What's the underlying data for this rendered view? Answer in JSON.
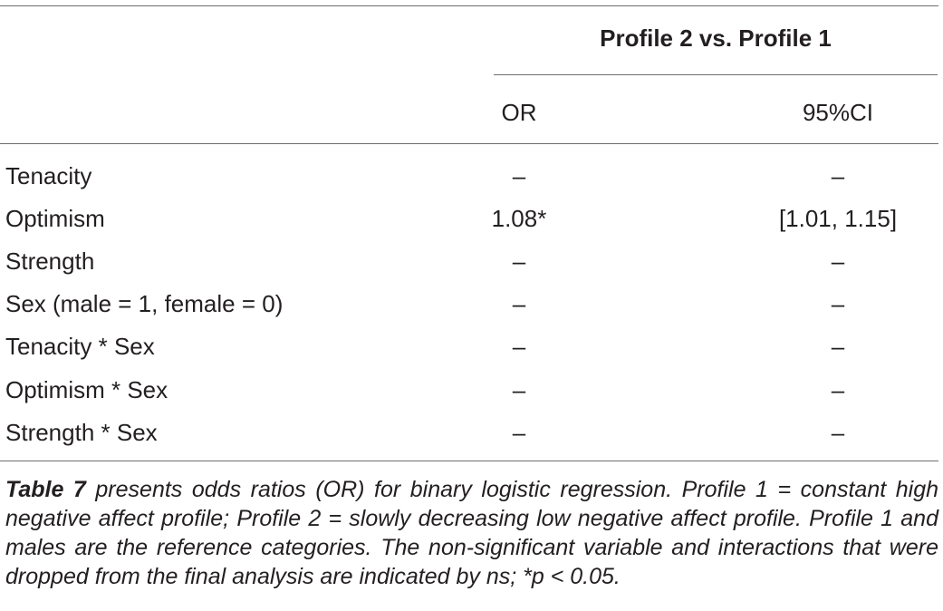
{
  "table": {
    "group_header": "Profile 2 vs. Profile 1",
    "columns": [
      "OR",
      "95%CI"
    ],
    "rows": [
      {
        "label": "Tenacity",
        "or": "–",
        "ci": "–"
      },
      {
        "label": "Optimism",
        "or": "1.08*",
        "ci": "[1.01, 1.15]"
      },
      {
        "label": "Strength",
        "or": "–",
        "ci": "–"
      },
      {
        "label": "Sex (male = 1, female = 0)",
        "or": "–",
        "ci": "–"
      },
      {
        "label": "Tenacity * Sex",
        "or": "–",
        "ci": "–"
      },
      {
        "label": "Optimism * Sex",
        "or": "–",
        "ci": "–"
      },
      {
        "label": "Strength * Sex",
        "or": "–",
        "ci": "–"
      }
    ]
  },
  "caption": {
    "ref": "Table 7",
    "text": " presents odds ratios (OR) for binary logistic regression. Profile 1 = constant high negative affect profile; Profile 2 = slowly decreasing low negative affect profile. Profile 1 and males are the reference categories. The non-significant variable and interactions that were dropped from the final analysis are indicated by ns; *p < 0.05."
  }
}
